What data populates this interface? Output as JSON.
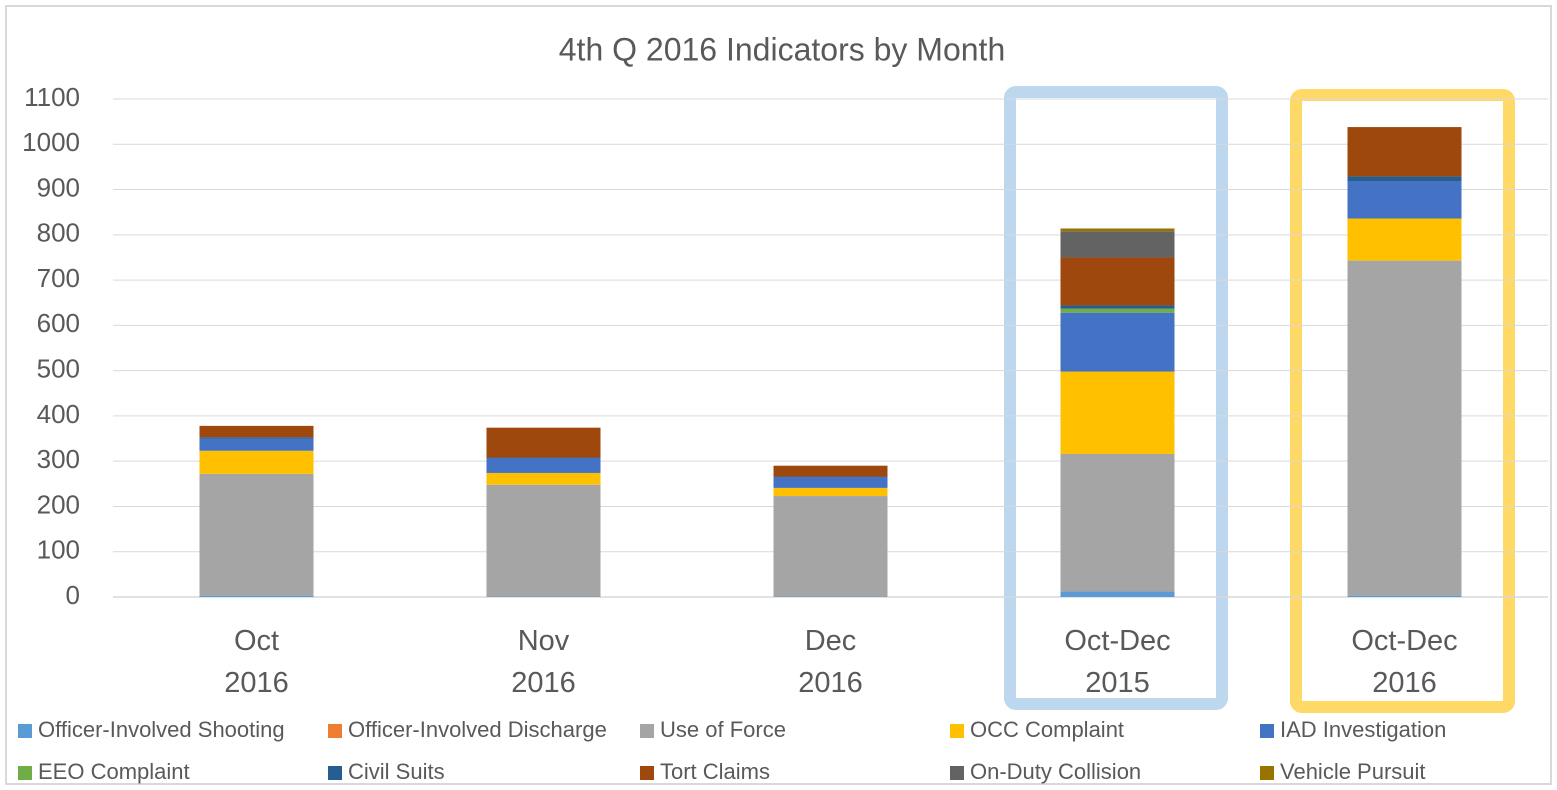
{
  "chart_data": {
    "type": "stacked_bar",
    "title": "4th Q 2016 Indicators by Month",
    "categories": [
      "Oct\n2016",
      "Nov\n2016",
      "Dec\n2016",
      "Oct-Dec\n2015",
      "Oct-Dec\n2016"
    ],
    "series": [
      {
        "name": "Officer-Involved Shooting",
        "color": "#5b9bd5",
        "values": [
          3,
          1,
          1,
          12,
          3
        ]
      },
      {
        "name": "Officer-Involved Discharge",
        "color": "#ed7d31",
        "values": [
          0,
          0,
          0,
          0,
          0
        ]
      },
      {
        "name": "Use of Force",
        "color": "#a5a5a5",
        "values": [
          269,
          247,
          222,
          304,
          740
        ]
      },
      {
        "name": "OCC Complaint",
        "color": "#ffc000",
        "values": [
          51,
          26,
          18,
          182,
          93
        ]
      },
      {
        "name": "IAD Investigation",
        "color": "#4472c4",
        "values": [
          27,
          33,
          24,
          130,
          82
        ]
      },
      {
        "name": "EEO Complaint",
        "color": "#70ad47",
        "values": [
          0,
          0,
          0,
          9,
          0
        ]
      },
      {
        "name": "Civil Suits",
        "color": "#255e91",
        "values": [
          3,
          1,
          1,
          7,
          11
        ]
      },
      {
        "name": "Tort Claims",
        "color": "#9e480e",
        "values": [
          25,
          66,
          24,
          106,
          109
        ]
      },
      {
        "name": "On-Duty Collision",
        "color": "#636363",
        "values": [
          0,
          0,
          0,
          58,
          0
        ]
      },
      {
        "name": "Vehicle Pursuit",
        "color": "#997300",
        "values": [
          0,
          0,
          0,
          6,
          0
        ]
      }
    ],
    "ylim": [
      0,
      1100
    ],
    "yticks": [
      0,
      100,
      200,
      300,
      400,
      500,
      600,
      700,
      800,
      900,
      1000,
      1100
    ],
    "grid": true,
    "legend": "bottom"
  }
}
